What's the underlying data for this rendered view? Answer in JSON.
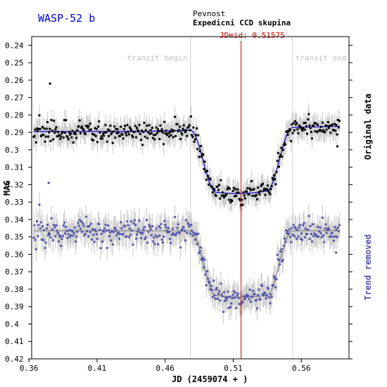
{
  "title": "WASP-52 b",
  "observer_line1": "Pevnost",
  "observer_line2": "Expedicni CCD skupina",
  "jdmid_label": "JDmid: 0.51575",
  "colors": {
    "original": "#000000",
    "trend": "#5555aa",
    "fit": "#0000cc",
    "error_bar": "#c8c8c8",
    "jdmid_line": "#cc0000",
    "transit_line": "#d4d4d4",
    "title": "#0000cc"
  },
  "chart_data": {
    "type": "scatter",
    "xlabel": "JD (2459074 + )",
    "ylabel": "MAG",
    "xlim": [
      0.362,
      0.595
    ],
    "ylim": [
      0.42,
      0.235
    ],
    "y_inverted": true,
    "xticks": [
      0.36,
      0.41,
      0.46,
      0.51,
      0.56
    ],
    "yticks": [
      0.24,
      0.25,
      0.26,
      0.27,
      0.28,
      0.29,
      0.3,
      0.31,
      0.32,
      0.33,
      0.34,
      0.35,
      0.36,
      0.37,
      0.38,
      0.39,
      0.4,
      0.41,
      0.42
    ],
    "transit_begin": {
      "x": 0.4785,
      "label": "transit begin"
    },
    "transit_end": {
      "x": 0.5535,
      "label": "transit end"
    },
    "jd_mid": 0.51575,
    "series": [
      {
        "name": "Original data",
        "baseline_start": 0.2895,
        "baseline_end": 0.2865,
        "depth": 0.036,
        "scatter": 0.0065,
        "error": 0.006,
        "x_start": 0.3635,
        "x_end": 0.588,
        "n_points": 380,
        "marker": "square"
      },
      {
        "name": "Trend removed",
        "baseline": 0.3465,
        "depth": 0.037,
        "scatter": 0.0075,
        "error": 0.007,
        "x_start": 0.3635,
        "x_end": 0.588,
        "n_points": 380,
        "marker": "square"
      }
    ],
    "model": {
      "ingress_start": 0.4785,
      "ingress_end": 0.4975,
      "egress_start": 0.5345,
      "egress_end": 0.5535
    }
  }
}
